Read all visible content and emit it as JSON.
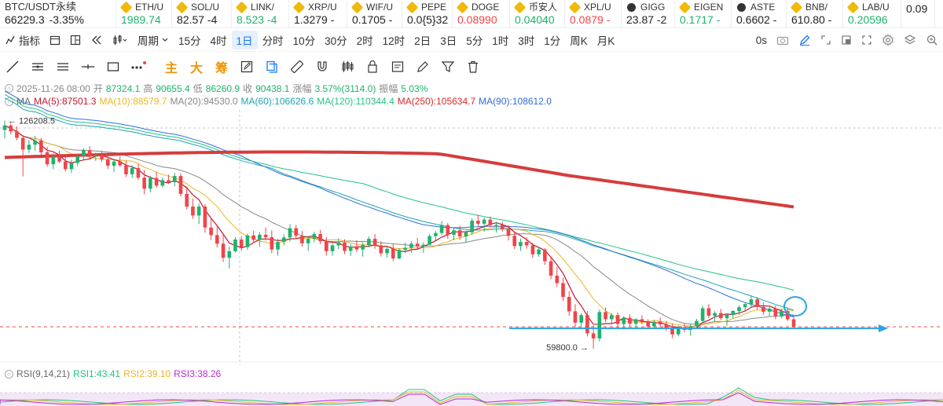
{
  "tickers": [
    {
      "name": "BTC/USDT永续",
      "price": "66229.3",
      "change": "-3.35%",
      "price_color": "dark",
      "icon": "none"
    },
    {
      "name": "ETH/U",
      "price": "1989.74",
      "price_color": "up",
      "icon": "binance-icon"
    },
    {
      "name": "SOL/U",
      "price": "82.57 -4",
      "price_color": "dark",
      "icon": "binance-icon"
    },
    {
      "name": "LINK/",
      "price": "8.523 -4",
      "price_color": "up",
      "icon": "binance-icon"
    },
    {
      "name": "XRP/U",
      "price": "1.3279 -",
      "price_color": "dark",
      "icon": "binance-icon"
    },
    {
      "name": "WIF/U",
      "price": "0.1705 -",
      "price_color": "dark",
      "icon": "binance-icon"
    },
    {
      "name": "PEPE",
      "price": "0.0{5}32",
      "price_color": "dark",
      "icon": "binance-icon"
    },
    {
      "name": "DOGE",
      "price": "0.08990",
      "price_color": "dn",
      "icon": "binance-icon"
    },
    {
      "name": "币安人",
      "price": "0.04040",
      "price_color": "up",
      "icon": "binance-icon"
    },
    {
      "name": "XPL/U",
      "price": "0.0879 -",
      "price_color": "dn",
      "icon": "binance-icon"
    },
    {
      "name": "GIGG",
      "price": "23.87 -2",
      "price_color": "dark",
      "icon": "x-icon"
    },
    {
      "name": "EIGEN",
      "price": "0.1717 -",
      "price_color": "up",
      "icon": "binance-icon"
    },
    {
      "name": "ASTE",
      "price": "0.6602 -",
      "price_color": "dark",
      "icon": "x-icon"
    },
    {
      "name": "BNB/",
      "price": "610.80 -",
      "price_color": "dark",
      "icon": "binance-icon"
    },
    {
      "name": "LAB/U",
      "price": "0.20596",
      "price_color": "up",
      "icon": "binance-icon"
    },
    {
      "name": "",
      "price": "0.09",
      "price_color": "dark",
      "icon": "none"
    }
  ],
  "period_bar": {
    "indicator_label": "指标",
    "period_label": "周期",
    "periods": [
      "15分",
      "4时",
      "1日",
      "分时",
      "10分",
      "30分",
      "2时",
      "12时",
      "2日",
      "3日",
      "5分",
      "1时",
      "3时",
      "1分",
      "周K",
      "月K"
    ],
    "active_period": "1日",
    "delay": "0s"
  },
  "draw_bar": {
    "tools": [
      "trend-line-icon",
      "parallel-lines-icon",
      "horizontal-lines-icon",
      "cross-line-icon",
      "rectangle-icon",
      "more-icon"
    ],
    "cn_buttons": [
      "主",
      "大",
      "筹"
    ],
    "tools2": [
      "edit-icon",
      "copy-icon",
      "ruler-icon",
      "magnet-icon",
      "candles-icon",
      "lock-icon",
      "note-icon",
      "pen-icon",
      "filter-icon",
      "delete-icon"
    ]
  },
  "ohlc": {
    "date": "2025-11-26 08:00",
    "open_label": "开",
    "open": "87324.1",
    "high_label": "高",
    "high": "90655.4",
    "low_label": "低",
    "low": "86260.9",
    "close_label": "收",
    "close": "90438.1",
    "chg_label": "涨幅",
    "chg": "3.57%(3114.0)",
    "amp_label": "振幅",
    "amp": "5.03%"
  },
  "ma_line": {
    "title": "MA",
    "items": [
      {
        "label": "MA(5):87501.3",
        "color": "#c0182f"
      },
      {
        "label": "MA(10):88579.7",
        "color": "#e9b728"
      },
      {
        "label": "MA(20):94530.0",
        "color": "#888888"
      },
      {
        "label": "MA(60):106626.6",
        "color": "#1fa4b2"
      },
      {
        "label": "MA(120):110344.4",
        "color": "#22c382"
      },
      {
        "label": "MA(250):105634.7",
        "color": "#d92929"
      },
      {
        "label": "MA(90):108612.0",
        "color": "#2f6ed8"
      }
    ]
  },
  "rsi_line": {
    "title": "RSI(9,14,21)",
    "items": [
      {
        "label": "RSI1:43.41",
        "color": "#22c382"
      },
      {
        "label": "RSI2:39.10",
        "color": "#e9b728"
      },
      {
        "label": "RSI3:38.26",
        "color": "#b62bd6"
      }
    ]
  },
  "chart_data": {
    "type": "candlestick",
    "high_marker": "126208.5",
    "low_marker": "59800.0",
    "current_level": "≈66229",
    "annotations": [
      "blue-horizontal-arrow-support",
      "blue-circle-last-candle"
    ],
    "candles": [
      [
        123500,
        126208,
        121000,
        124800
      ],
      [
        124800,
        125300,
        122200,
        123100
      ],
      [
        123100,
        124600,
        120500,
        121200
      ],
      [
        121200,
        122000,
        110000,
        117800
      ],
      [
        117800,
        120500,
        116800,
        119200
      ],
      [
        119200,
        121800,
        117500,
        120400
      ],
      [
        120400,
        121200,
        116100,
        117000
      ],
      [
        117000,
        118600,
        112800,
        113500
      ],
      [
        113500,
        116800,
        112100,
        115700
      ],
      [
        115700,
        117500,
        113900,
        114300
      ],
      [
        114300,
        115600,
        111400,
        112100
      ],
      [
        112100,
        114800,
        111000,
        113900
      ],
      [
        113900,
        116300,
        113000,
        115900
      ],
      [
        115900,
        118200,
        114900,
        117600
      ],
      [
        117600,
        118800,
        115200,
        115800
      ],
      [
        115800,
        116900,
        114500,
        116200
      ],
      [
        116200,
        117300,
        114200,
        114900
      ],
      [
        114900,
        116100,
        112100,
        113100
      ],
      [
        113100,
        114900,
        111300,
        114300
      ],
      [
        114300,
        115800,
        112700,
        113200
      ],
      [
        113200,
        114500,
        109800,
        110600
      ],
      [
        110600,
        113200,
        109500,
        112400
      ],
      [
        112400,
        113600,
        108900,
        109600
      ],
      [
        109600,
        111800,
        104800,
        106400
      ],
      [
        106400,
        110200,
        105300,
        109500
      ],
      [
        109500,
        111300,
        106700,
        107300
      ],
      [
        107300,
        109700,
        106800,
        108900
      ],
      [
        108900,
        110500,
        107800,
        108300
      ],
      [
        108300,
        111000,
        107100,
        110100
      ],
      [
        110100,
        110900,
        104100,
        104900
      ],
      [
        104900,
        107100,
        100300,
        101200
      ],
      [
        101200,
        103500,
        97600,
        98600
      ],
      [
        98600,
        102100,
        96100,
        101200
      ],
      [
        101200,
        101900,
        93600,
        95100
      ],
      [
        95100,
        97800,
        91500,
        92900
      ],
      [
        92900,
        95400,
        89300,
        90400
      ],
      [
        90400,
        93100,
        85100,
        86300
      ],
      [
        86300,
        89500,
        83200,
        88200
      ],
      [
        88200,
        92300,
        87800,
        91600
      ],
      [
        91600,
        92600,
        88300,
        89400
      ],
      [
        89400,
        93300,
        88600,
        92800
      ],
      [
        92800,
        94200,
        90900,
        91500
      ],
      [
        91500,
        93800,
        89500,
        93000
      ],
      [
        93000,
        95100,
        91300,
        92300
      ],
      [
        92300,
        94300,
        87600,
        88700
      ],
      [
        88700,
        91800,
        86900,
        90900
      ],
      [
        90900,
        93100,
        89900,
        92200
      ],
      [
        92200,
        96100,
        91000,
        94900
      ],
      [
        94900,
        95800,
        91800,
        92700
      ],
      [
        92700,
        94100,
        89500,
        90500
      ],
      [
        90500,
        92600,
        88300,
        91800
      ],
      [
        91800,
        93900,
        90800,
        93200
      ],
      [
        93200,
        94400,
        90300,
        91100
      ],
      [
        91100,
        92300,
        86900,
        88200
      ],
      [
        88200,
        90600,
        86900,
        89900
      ],
      [
        89900,
        91900,
        88800,
        90800
      ],
      [
        90800,
        91700,
        87400,
        88300
      ],
      [
        88300,
        90300,
        86800,
        89600
      ],
      [
        89600,
        91400,
        88000,
        88700
      ],
      [
        88700,
        90800,
        86600,
        90000
      ],
      [
        90000,
        92500,
        89300,
        91800
      ],
      [
        91800,
        93200,
        88900,
        89900
      ],
      [
        89900,
        91100,
        86700,
        87600
      ],
      [
        87600,
        89800,
        86400,
        88900
      ],
      [
        88900,
        90200,
        85300,
        86100
      ],
      [
        86100,
        89100,
        85800,
        88600
      ],
      [
        88600,
        90700,
        87600,
        89200
      ],
      [
        89200,
        91100,
        87800,
        90400
      ],
      [
        90400,
        92100,
        88900,
        89600
      ],
      [
        89600,
        90800,
        87700,
        90100
      ],
      [
        90100,
        93200,
        89900,
        92600
      ],
      [
        92600,
        94100,
        91400,
        93500
      ],
      [
        93500,
        97000,
        92800,
        95800
      ],
      [
        95800,
        96400,
        91800,
        93000
      ],
      [
        93000,
        94900,
        91400,
        94300
      ],
      [
        94300,
        95600,
        91500,
        92500
      ],
      [
        92500,
        94200,
        90600,
        93700
      ],
      [
        93700,
        97800,
        93000,
        97100
      ],
      [
        97100,
        98800,
        95400,
        96200
      ],
      [
        96200,
        98000,
        93900,
        97400
      ],
      [
        97400,
        98300,
        95200,
        95800
      ],
      [
        95800,
        96800,
        93600,
        95900
      ],
      [
        95900,
        96800,
        93900,
        94600
      ],
      [
        94600,
        95800,
        91300,
        92700
      ],
      [
        92700,
        93600,
        88800,
        89700
      ],
      [
        89700,
        91900,
        88300,
        90900
      ],
      [
        90900,
        92300,
        88900,
        89900
      ],
      [
        89900,
        90700,
        86200,
        87300
      ],
      [
        87300,
        89600,
        86600,
        88700
      ],
      [
        88700,
        89100,
        84200,
        85300
      ],
      [
        85300,
        86600,
        80100,
        81100
      ],
      [
        81100,
        83600,
        77800,
        78900
      ],
      [
        78900,
        80500,
        73700,
        74900
      ],
      [
        74900,
        76600,
        69400,
        70700
      ],
      [
        70700,
        72800,
        66100,
        67400
      ],
      [
        67400,
        70200,
        65800,
        69600
      ],
      [
        69600,
        70800,
        63400,
        64300
      ],
      [
        64300,
        66600,
        59800,
        62800
      ],
      [
        62800,
        71200,
        61900,
        70500
      ],
      [
        70500,
        71800,
        67500,
        68400
      ],
      [
        68400,
        70200,
        67100,
        69600
      ],
      [
        69600,
        70400,
        65900,
        67000
      ],
      [
        67000,
        69300,
        65400,
        68800
      ],
      [
        68800,
        69800,
        66300,
        67100
      ],
      [
        67100,
        68700,
        65700,
        68400
      ],
      [
        68400,
        69600,
        66900,
        67600
      ],
      [
        67600,
        68400,
        65600,
        66300
      ],
      [
        66300,
        68100,
        65700,
        67700
      ],
      [
        67700,
        68900,
        66100,
        66900
      ],
      [
        66900,
        67900,
        65000,
        65800
      ],
      [
        65800,
        67200,
        62900,
        64000
      ],
      [
        64000,
        66600,
        63400,
        66100
      ],
      [
        66100,
        67200,
        64600,
        65300
      ],
      [
        65300,
        66900,
        63600,
        66300
      ],
      [
        66300,
        68500,
        65900,
        67900
      ],
      [
        67900,
        72300,
        67400,
        71600
      ],
      [
        71600,
        72800,
        68700,
        69400
      ],
      [
        69400,
        70800,
        67800,
        70200
      ],
      [
        70200,
        71400,
        68200,
        68700
      ],
      [
        68700,
        70100,
        66500,
        69700
      ],
      [
        69700,
        71100,
        68600,
        70800
      ],
      [
        70800,
        72400,
        69700,
        71900
      ],
      [
        71900,
        73300,
        70900,
        72800
      ],
      [
        72800,
        75100,
        71800,
        74200
      ],
      [
        74200,
        74900,
        71200,
        72000
      ],
      [
        72000,
        73300,
        69600,
        70600
      ],
      [
        70600,
        72000,
        69100,
        71500
      ],
      [
        71500,
        72400,
        68400,
        69200
      ],
      [
        69200,
        71300,
        68700,
        70800
      ],
      [
        70800,
        71500,
        67900,
        68400
      ],
      [
        68400,
        69100,
        65600,
        66200
      ]
    ]
  }
}
